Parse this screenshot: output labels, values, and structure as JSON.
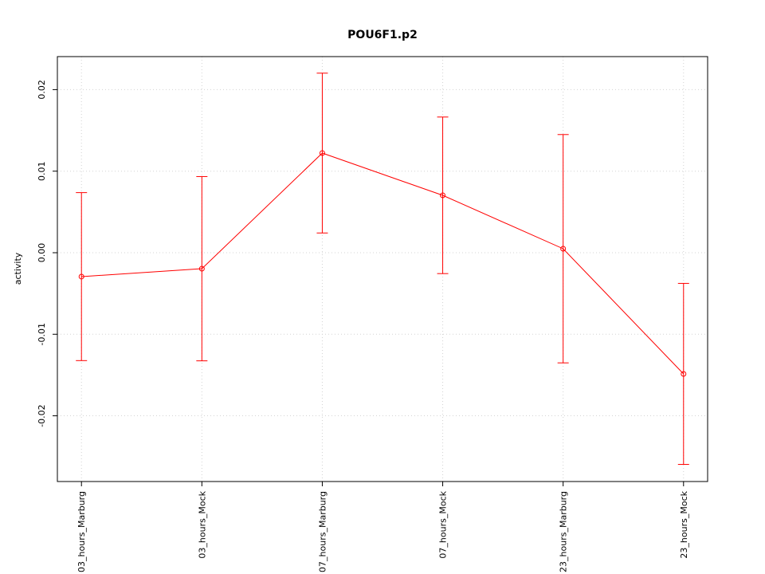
{
  "chart_data": {
    "type": "line",
    "title": "POU6F1.p2",
    "y_label": "activity",
    "categories": [
      "03_hours_Marburg",
      "03_hours_Mock",
      "07_hours_Marburg",
      "07_hours_Mock",
      "23_hours_Marburg",
      "23_hours_Mock"
    ],
    "values": [
      -0.00293,
      -0.00196,
      0.01222,
      0.00704,
      0.00049,
      -0.01486
    ],
    "errors": [
      0.0103,
      0.0113,
      0.0098,
      0.0096,
      0.014,
      0.0111
    ],
    "color": "#ff0000",
    "ylim": [
      -0.02806,
      0.02405
    ],
    "yticks": [
      -0.02,
      -0.01,
      {
        "value": 0,
        "label": "0.00"
      },
      0.01,
      0.02
    ],
    "grid": true
  }
}
